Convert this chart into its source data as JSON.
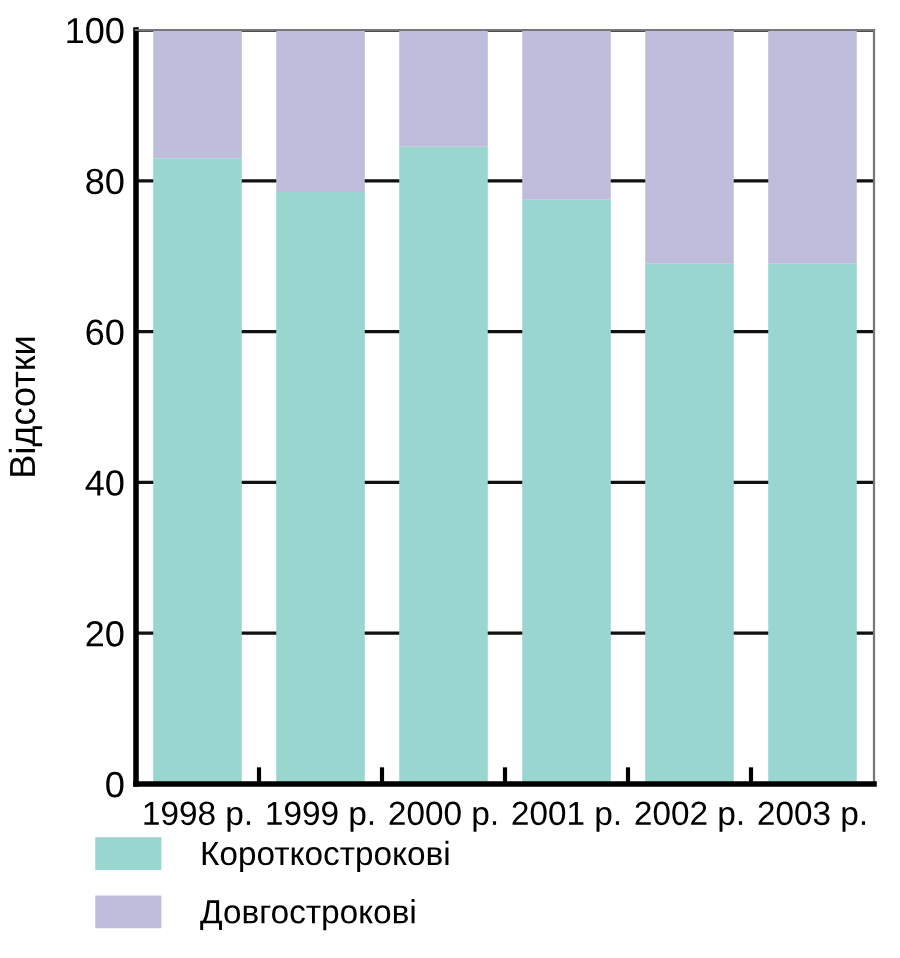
{
  "chart_data": {
    "type": "bar",
    "stacked": true,
    "ylabel": "Відсотки",
    "categories": [
      "1998 р.",
      "1999 р.",
      "2000 р.",
      "2001 р.",
      "2002 р.",
      "2003 р."
    ],
    "series": [
      {
        "name": "Короткострокові",
        "color": "#98d6cf",
        "values": [
          83,
          78.5,
          84.5,
          77.5,
          69,
          69
        ]
      },
      {
        "name": "Довгострокові",
        "color": "#bfbddc",
        "values": [
          17,
          21.5,
          15.5,
          22.5,
          31,
          31
        ]
      }
    ],
    "ylim": [
      0,
      100
    ],
    "yticks": [
      0,
      20,
      40,
      60,
      80,
      100
    ],
    "grid": "y",
    "legend": "bottom"
  }
}
